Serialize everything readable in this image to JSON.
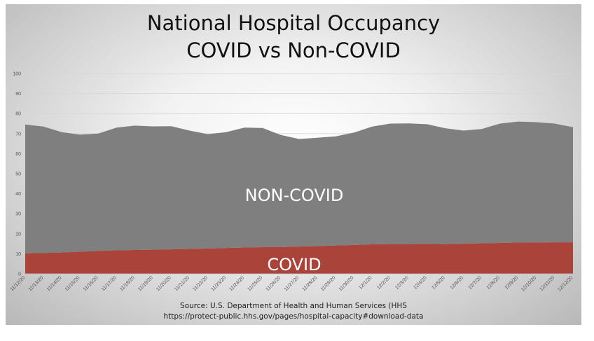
{
  "title_line1": "National Hospital Occupancy",
  "title_line2": "COVID vs Non-COVID",
  "source_line1": "Source: U.S. Department of Health and Human Services (HHS",
  "source_line2": "https://protect-public.hhs.gov/pages/hospital-capacity#download-data",
  "colors": {
    "noncovid": "#7f7f7f",
    "covid": "#aa433a",
    "gridline": "#d6d6d6"
  },
  "chart_data": {
    "type": "area",
    "stacked": true,
    "title": "National Hospital Occupancy COVID vs Non-COVID",
    "categories": [
      "11/12/20",
      "11/13/20",
      "11/14/20",
      "11/15/20",
      "11/16/20",
      "11/17/20",
      "11/18/20",
      "11/19/20",
      "11/20/20",
      "11/21/20",
      "11/22/20",
      "11/23/20",
      "11/24/20",
      "11/25/20",
      "11/26/20",
      "11/27/20",
      "11/28/20",
      "11/29/20",
      "11/30/20",
      "12/1/20",
      "12/2/20",
      "12/3/20",
      "12/4/20",
      "12/5/20",
      "12/6/20",
      "12/7/20",
      "12/8/20",
      "12/9/20",
      "12/10/20",
      "12/11/20",
      "12/12/20"
    ],
    "series": [
      {
        "name": "COVID",
        "values": [
          10.2,
          10.4,
          10.6,
          11.0,
          11.4,
          11.7,
          11.9,
          12.0,
          12.2,
          12.4,
          12.6,
          12.9,
          13.1,
          13.3,
          13.3,
          13.6,
          13.8,
          14.1,
          14.4,
          14.7,
          14.8,
          14.8,
          14.9,
          14.8,
          15.0,
          15.2,
          15.4,
          15.6,
          15.6,
          15.7,
          15.7
        ]
      },
      {
        "name": "NON-COVID",
        "values": [
          64.3,
          63.1,
          60.1,
          58.5,
          58.6,
          61.3,
          62.1,
          61.6,
          61.5,
          59.1,
          57.1,
          57.8,
          59.9,
          59.5,
          56.0,
          53.7,
          54.1,
          54.5,
          56.1,
          58.8,
          60.2,
          60.3,
          59.8,
          57.9,
          56.5,
          57.1,
          59.6,
          60.4,
          60.1,
          59.3,
          57.5
        ]
      }
    ],
    "ylim": [
      0,
      100
    ],
    "yticks": [
      0,
      10,
      20,
      30,
      40,
      50,
      60,
      70,
      80,
      90,
      100
    ],
    "grid": true,
    "legend": "labels on areas"
  }
}
